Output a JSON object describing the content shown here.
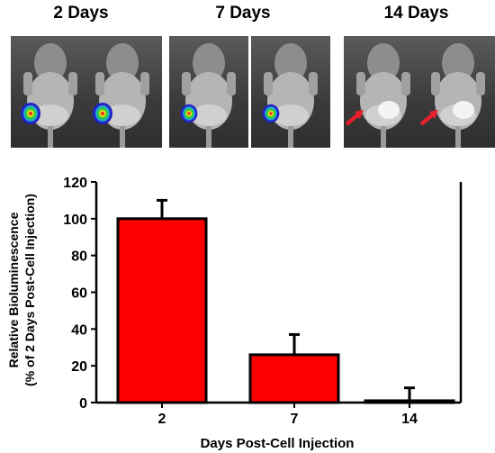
{
  "panels": [
    {
      "title": "2 Days",
      "images": [
        {
          "signal": "high"
        },
        {
          "signal": "high"
        }
      ]
    },
    {
      "title": "7 Days",
      "images": [
        {
          "signal": "medium"
        },
        {
          "signal": "medium"
        }
      ]
    },
    {
      "title": "14 Days",
      "images": [
        {
          "signal": "low",
          "arrow": true
        },
        {
          "signal": "low",
          "arrow": true
        }
      ]
    }
  ],
  "chart_data": {
    "type": "bar",
    "categories": [
      "2",
      "7",
      "14"
    ],
    "values": [
      100,
      26,
      1
    ],
    "error_upper": [
      110,
      37,
      8
    ],
    "title": "",
    "xlabel": "Days Post-Cell Injection",
    "ylabel_line1": "Relative Bioluminescence",
    "ylabel_line2": "(% of 2 Days Post-Cell Injection)",
    "ylim": [
      0,
      120
    ],
    "yticks": [
      0,
      20,
      40,
      60,
      80,
      100,
      120
    ],
    "bar_color": "#ff0000",
    "edge_color": "#000000",
    "grid": false,
    "legend": "none"
  },
  "colors": {
    "arrow": "#e8202a",
    "bar": "#ff0000"
  }
}
